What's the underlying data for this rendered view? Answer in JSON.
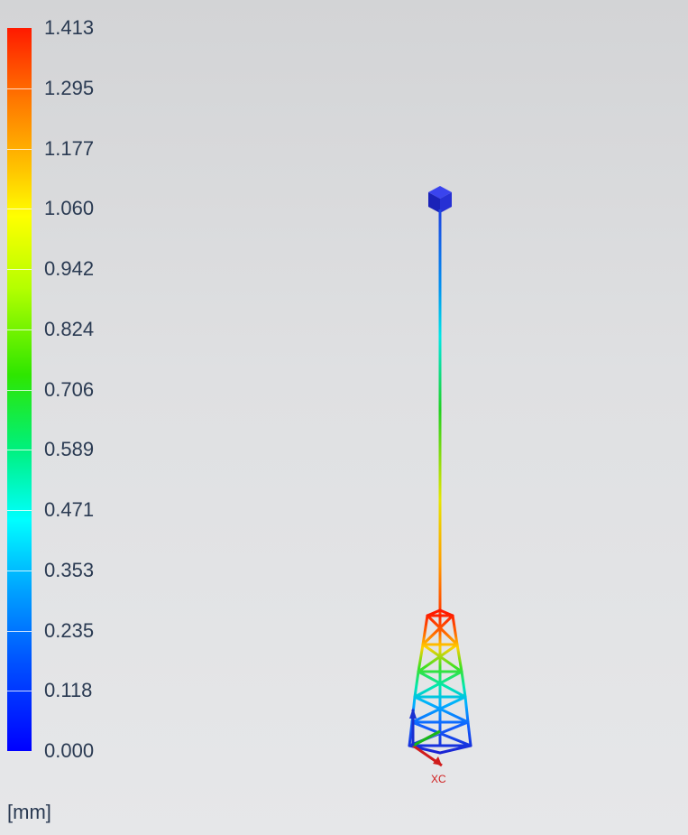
{
  "legend": {
    "labels": [
      "1.413",
      "1.295",
      "1.177",
      "1.060",
      "0.942",
      "0.824",
      "0.706",
      "0.589",
      "0.471",
      "0.353",
      "0.235",
      "0.118",
      "0.000"
    ],
    "unit": "[mm]",
    "colors": [
      "#ff1a00",
      "#ff7800",
      "#ffc800",
      "#ffff00",
      "#b4ff00",
      "#2ee600",
      "#00f07a",
      "#00ffff",
      "#00a0ff",
      "#0050ff",
      "#0000ff"
    ]
  },
  "axes": {
    "x_label": "XC",
    "x_color": "#d01c1c",
    "y_color": "#18b818",
    "z_color": "#1a2fd0"
  },
  "model": {
    "node_color": "#1e24c8"
  }
}
